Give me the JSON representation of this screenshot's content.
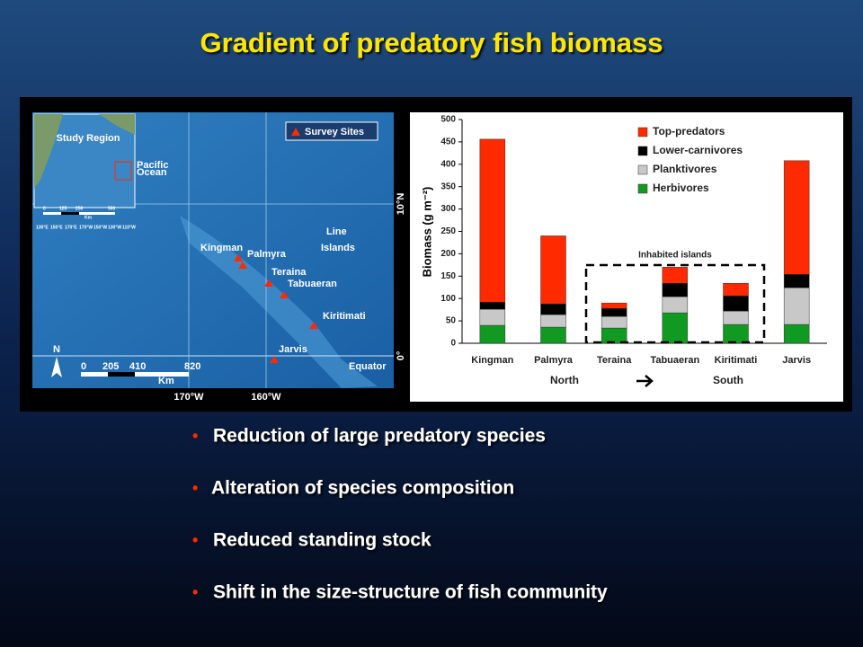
{
  "title": "Gradient of predatory fish biomass",
  "bullets": [
    "Reduction of large predatory species",
    "Alteration of species composition",
    "Reduced standing stock",
    "Shift in the size-structure of fish community"
  ],
  "map": {
    "legend": "Survey Sites",
    "inset": {
      "title": "Study Region",
      "ocean": [
        "Pacific",
        "Ocean"
      ],
      "scale": [
        "0",
        "125",
        "250",
        "500",
        "Km"
      ],
      "lon_labels": [
        "130°E",
        "150°E",
        "170°E",
        "170°W",
        "150°W",
        "130°W",
        "110°W"
      ]
    },
    "region": [
      "Line",
      "Islands"
    ],
    "sites": [
      "Kingman",
      "Palmyra",
      "Teraina",
      "Tabuaeran",
      "Kiritimati",
      "Jarvis"
    ],
    "equator": "Equator",
    "north": "N",
    "scale": [
      "0",
      "205",
      "410",
      "820",
      "Km"
    ],
    "lon_labels": [
      "170°W",
      "160°W"
    ],
    "lat_labels": [
      "10°N",
      "0°"
    ]
  },
  "chart_data": {
    "type": "bar",
    "stacked": true,
    "y_label": "Biomass (g m⁻²)",
    "categories": [
      "Kingman",
      "Palmyra",
      "Teraina",
      "Tabuaeran",
      "Kiritimati",
      "Jarvis"
    ],
    "series": [
      {
        "name": "Top-predators",
        "color": "#ff2a00",
        "values": [
          364,
          152,
          12,
          36,
          28,
          254
        ]
      },
      {
        "name": "Lower-carnivores",
        "color": "#000000",
        "values": [
          16,
          24,
          18,
          30,
          34,
          30
        ]
      },
      {
        "name": "Planktivores",
        "color": "#c8c8c8",
        "values": [
          36,
          28,
          26,
          36,
          30,
          82
        ]
      },
      {
        "name": "Herbivores",
        "color": "#119a22",
        "values": [
          40,
          36,
          34,
          68,
          42,
          42
        ]
      }
    ],
    "ylim": [
      0,
      500
    ],
    "yticks": [
      0,
      50,
      100,
      150,
      200,
      250,
      300,
      350,
      400,
      450,
      500
    ],
    "annotations": [
      "Inhabited islands",
      "North",
      "South"
    ]
  }
}
